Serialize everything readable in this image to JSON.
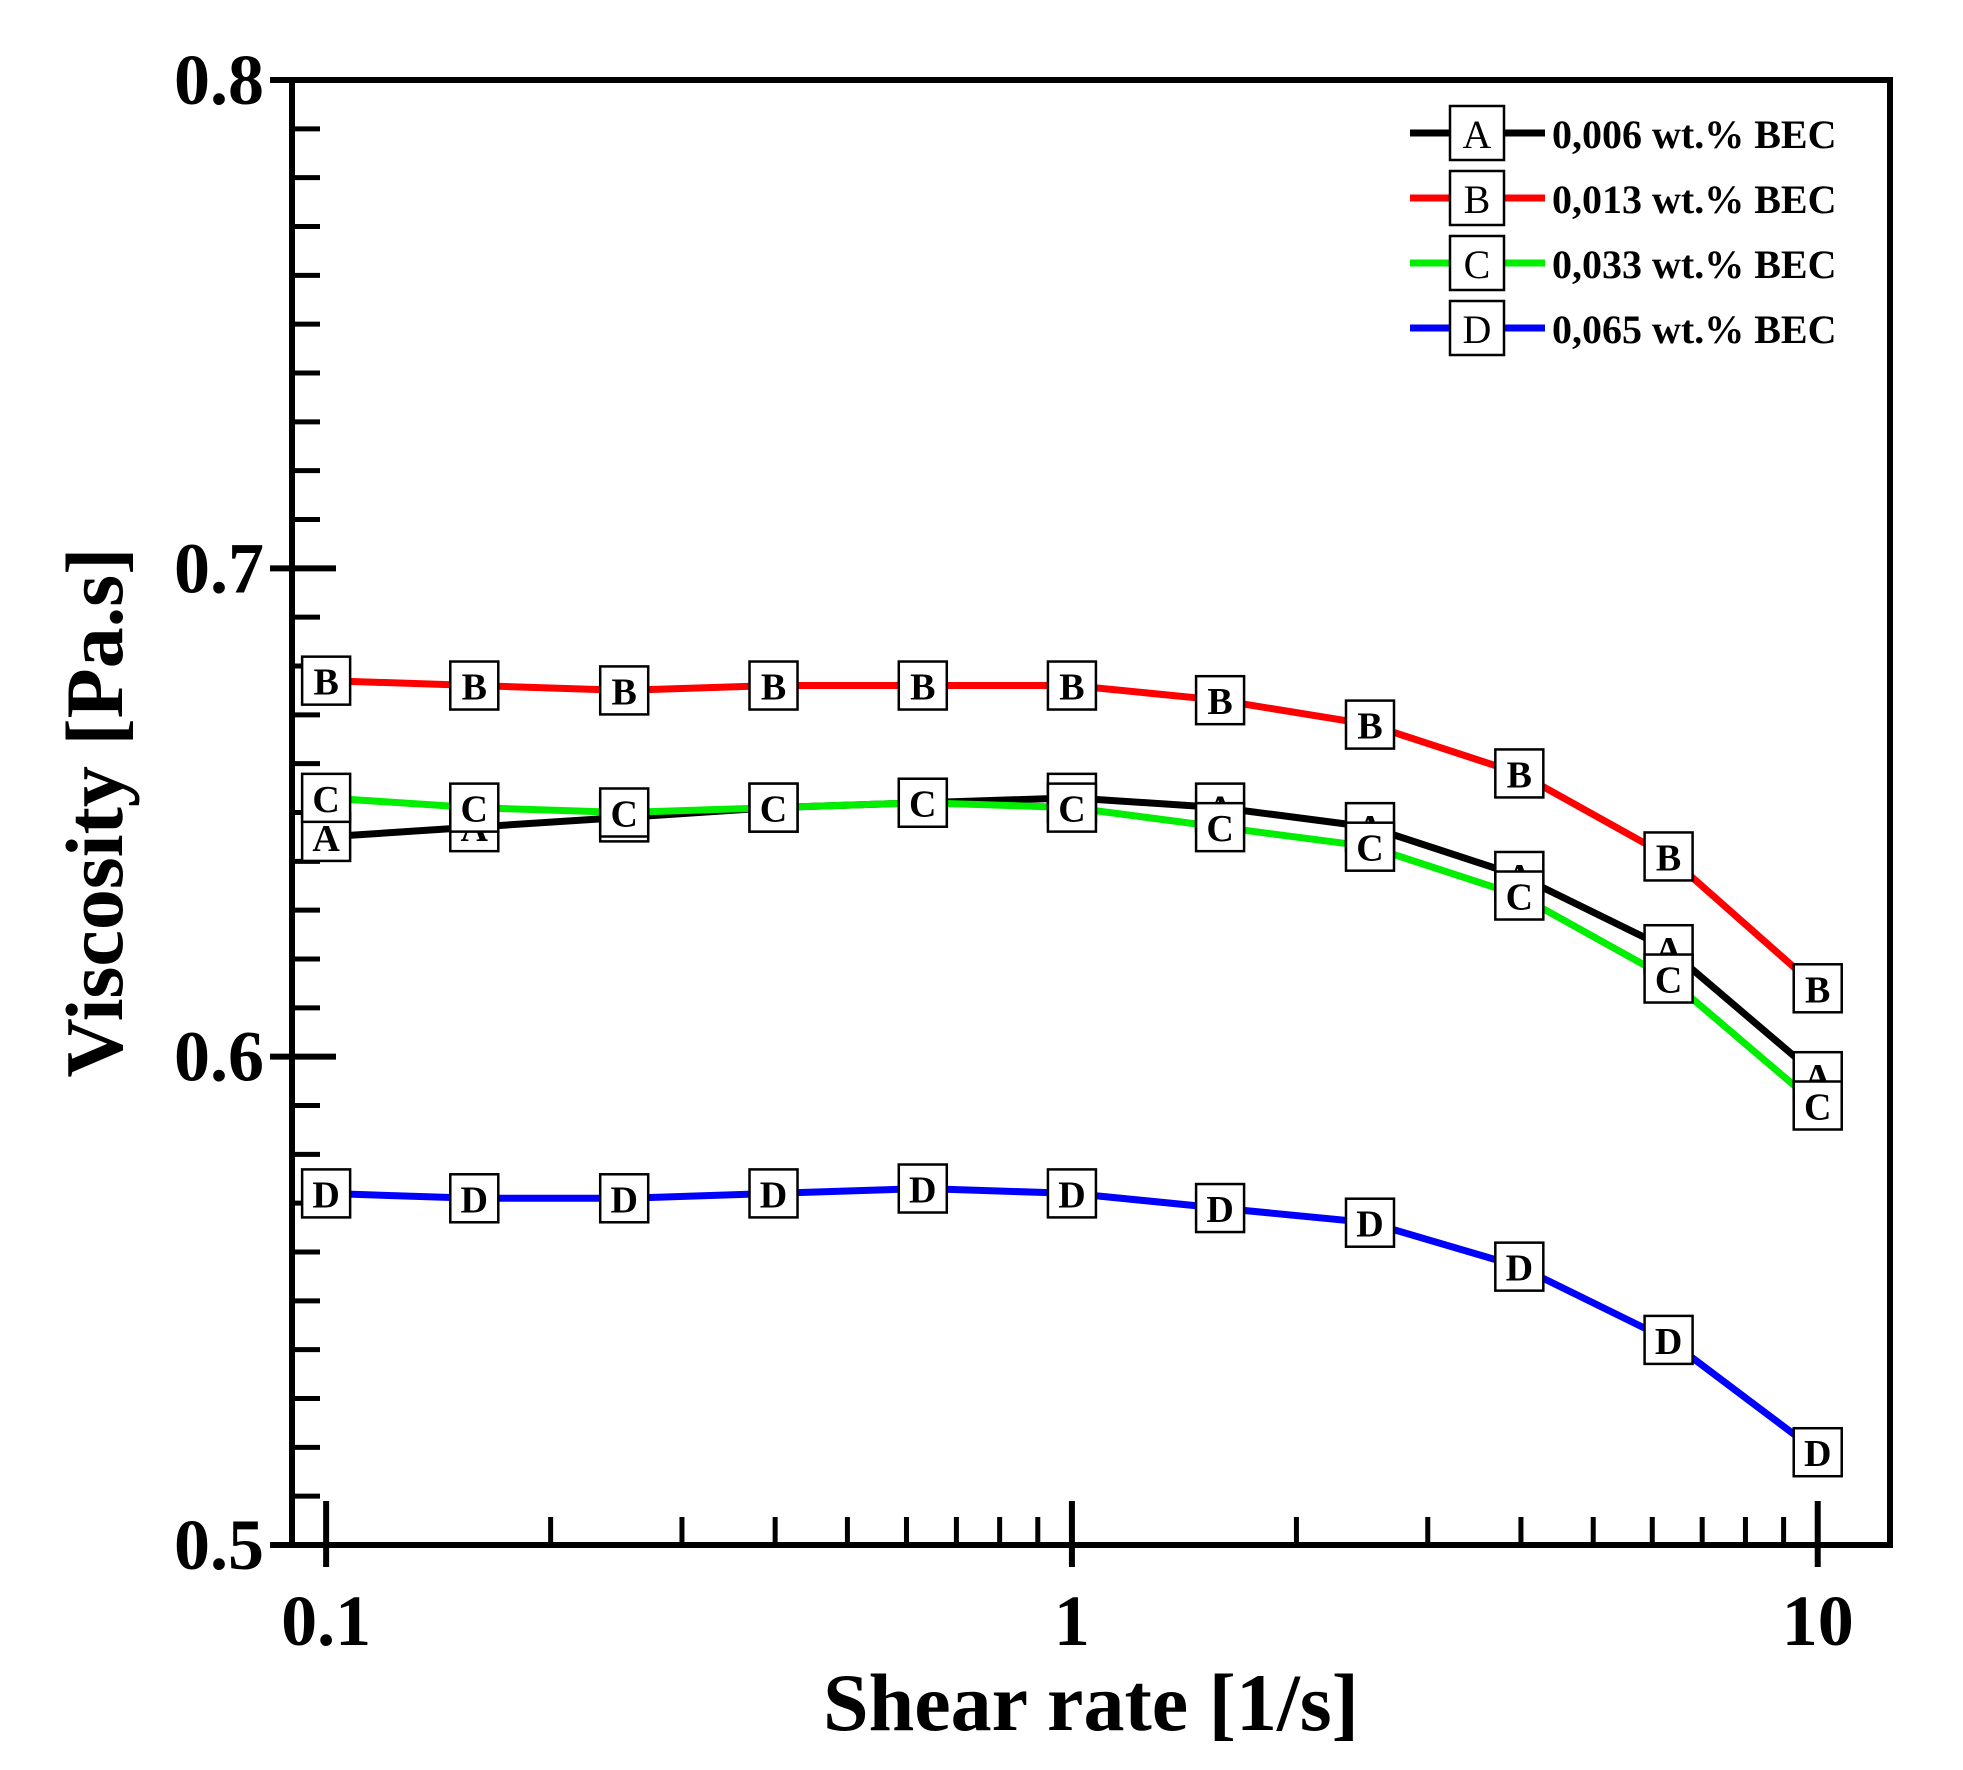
{
  "chart_data": {
    "type": "line",
    "title": "",
    "xlabel": "Shear rate [1/s]",
    "ylabel": "Viscosity [Pa.s]",
    "xscale": "log",
    "xlim": [
      0.09,
      12.5
    ],
    "ylim": [
      0.5,
      0.8
    ],
    "x_ticks": [
      {
        "value": 0.1,
        "label": "0.1"
      },
      {
        "value": 1,
        "label": "1"
      },
      {
        "value": 10,
        "label": "10"
      }
    ],
    "y_ticks": [
      {
        "value": 0.5,
        "label": "0.5"
      },
      {
        "value": 0.6,
        "label": "0.6"
      },
      {
        "value": 0.7,
        "label": "0.7"
      },
      {
        "value": 0.8,
        "label": "0.8"
      }
    ],
    "grid": false,
    "legend_position": "top-right",
    "x": [
      0.1,
      0.158,
      0.251,
      0.398,
      0.631,
      1,
      1.58,
      2.51,
      3.98,
      6.31,
      10
    ],
    "series": [
      {
        "name": "0,006 wt.% BEC",
        "marker": "A",
        "color": "#000000",
        "values": [
          0.645,
          0.647,
          0.649,
          0.651,
          0.652,
          0.653,
          0.651,
          0.647,
          0.637,
          0.622,
          0.596
        ]
      },
      {
        "name": "0,013 wt.% BEC",
        "marker": "B",
        "color": "#ff0000",
        "values": [
          0.677,
          0.676,
          0.675,
          0.676,
          0.676,
          0.676,
          0.673,
          0.668,
          0.658,
          0.641,
          0.614
        ]
      },
      {
        "name": "0,033 wt.% BEC",
        "marker": "C",
        "color": "#00ee00",
        "values": [
          0.653,
          0.651,
          0.65,
          0.651,
          0.652,
          0.651,
          0.647,
          0.643,
          0.633,
          0.616,
          0.59
        ]
      },
      {
        "name": "0,065 wt.% BEC",
        "marker": "D",
        "color": "#0000ff",
        "values": [
          0.572,
          0.571,
          0.571,
          0.572,
          0.573,
          0.572,
          0.569,
          0.566,
          0.557,
          0.542,
          0.519
        ]
      }
    ]
  }
}
